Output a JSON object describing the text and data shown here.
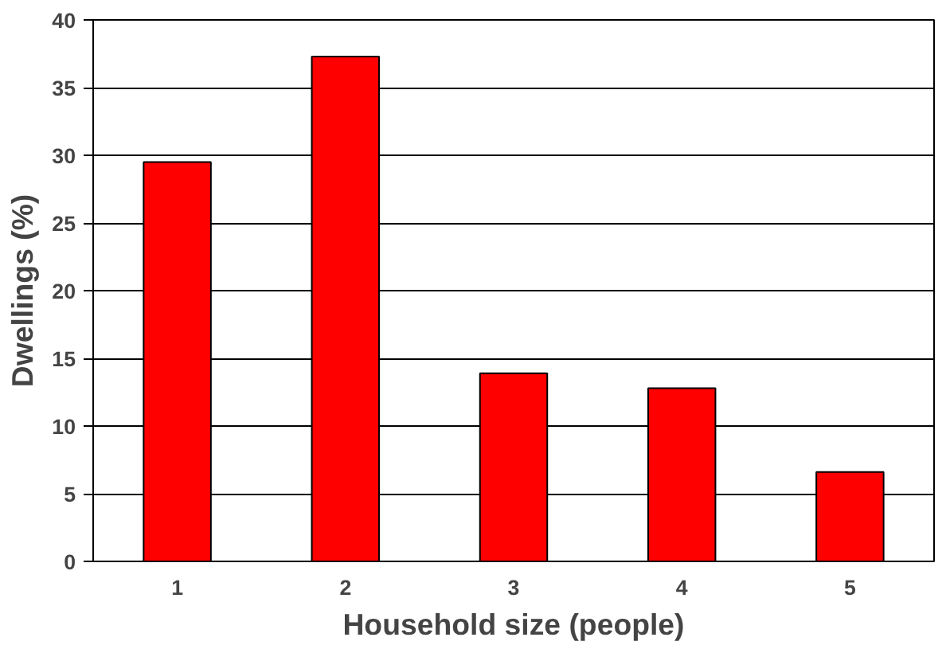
{
  "chart_data": {
    "type": "bar",
    "xlabel": "Household size (people)",
    "ylabel": "Dwellings (%)",
    "categories": [
      "1",
      "2",
      "3",
      "4",
      "5"
    ],
    "values": [
      29.5,
      37.3,
      13.9,
      12.8,
      6.6
    ],
    "color": "#ff0000",
    "ylim": [
      0,
      40
    ],
    "yticks": [
      0,
      5,
      10,
      15,
      20,
      25,
      30,
      35,
      40
    ],
    "grid": "y"
  }
}
